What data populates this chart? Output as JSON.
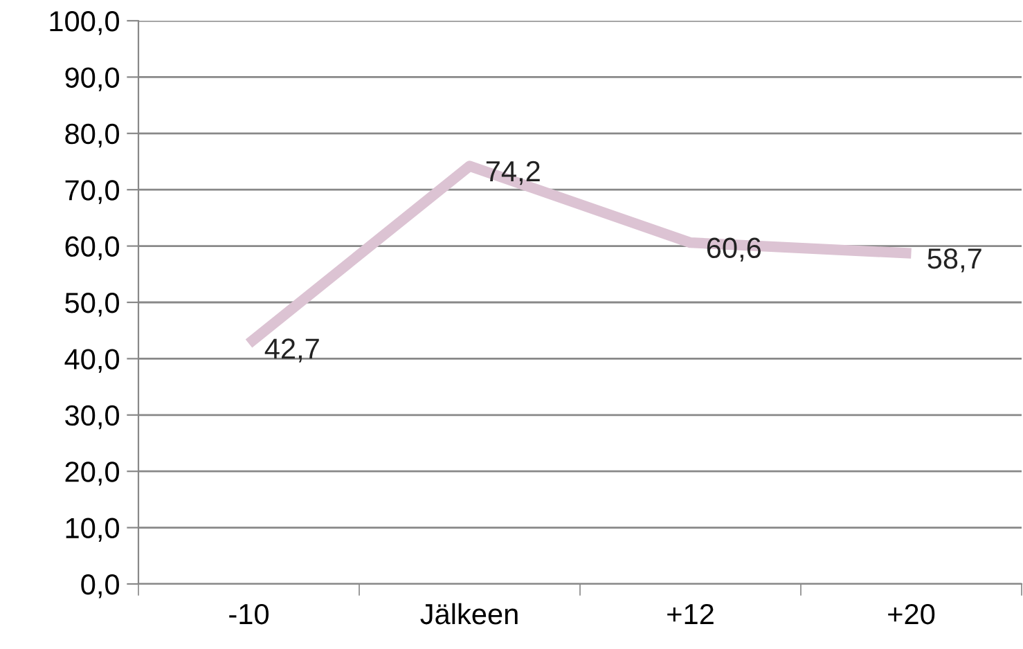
{
  "chart_data": {
    "type": "line",
    "categories": [
      "-10",
      "Jälkeen",
      "+12",
      "+20"
    ],
    "series": [
      {
        "color": "#dcc3d3",
        "values": [
          42.7,
          74.2,
          60.6,
          58.7
        ],
        "value_labels": [
          "42,7",
          "74,2",
          "60,6",
          "58,7"
        ]
      }
    ],
    "ylim": [
      0,
      100
    ],
    "yticks": [
      {
        "value": 0,
        "label": "0,0"
      },
      {
        "value": 10,
        "label": "10,0"
      },
      {
        "value": 20,
        "label": "20,0"
      },
      {
        "value": 30,
        "label": "30,0"
      },
      {
        "value": 40,
        "label": "40,0"
      },
      {
        "value": 50,
        "label": "50,0"
      },
      {
        "value": 60,
        "label": "60,0"
      },
      {
        "value": 70,
        "label": "70,0"
      },
      {
        "value": 80,
        "label": "80,0"
      },
      {
        "value": 90,
        "label": "90,0"
      },
      {
        "value": 100,
        "label": "100,0"
      }
    ],
    "grid": "y",
    "marker": "none",
    "line_style": "solid",
    "legend": false
  }
}
